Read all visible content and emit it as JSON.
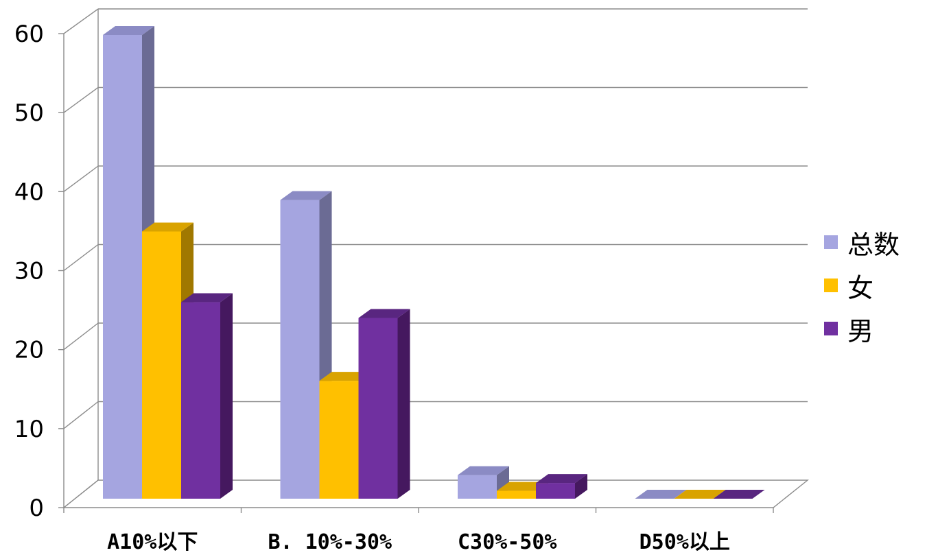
{
  "chart_data": {
    "type": "bar",
    "categories": [
      "A10%以下",
      "B. 10%-30%",
      "C30%-50%",
      "D50%以上"
    ],
    "series": [
      {
        "name": "总数",
        "values": [
          59,
          38,
          3,
          0
        ],
        "color": "#A5A5E0",
        "side_color": "#6B6B94",
        "top_color": "#8B8BC4"
      },
      {
        "name": "女",
        "values": [
          34,
          15,
          1,
          0
        ],
        "color": "#FFC000",
        "side_color": "#A07800",
        "top_color": "#D9A300"
      },
      {
        "name": "男",
        "values": [
          25,
          23,
          2,
          0
        ],
        "color": "#7030A0",
        "side_color": "#45185F",
        "top_color": "#592680"
      }
    ],
    "y_ticks": [
      "0",
      "10",
      "20",
      "30",
      "40",
      "50",
      "60"
    ],
    "ylim": [
      0,
      60
    ],
    "grid": true,
    "legend_position": "right",
    "style": "3d-clustered-column"
  }
}
